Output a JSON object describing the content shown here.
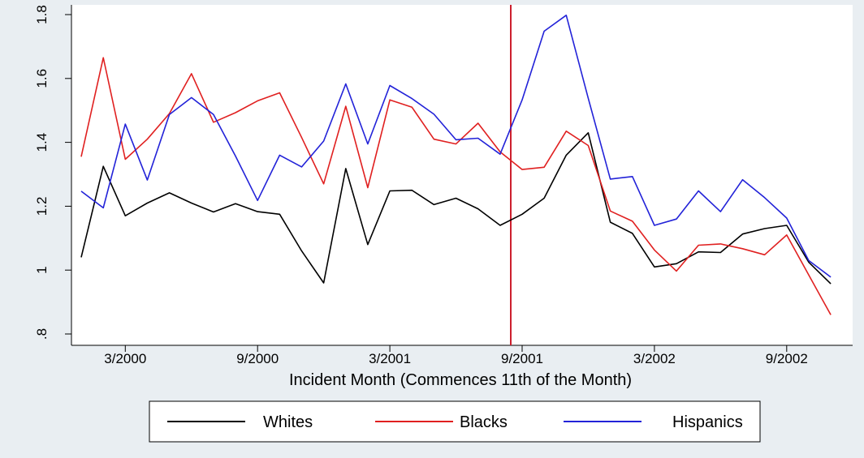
{
  "chart_data": {
    "type": "line",
    "xlabel": "Incident Month (Commences 11th of the Month)",
    "ylabel": "",
    "x_tick_labels": [
      "3/2000",
      "9/2000",
      "3/2001",
      "9/2001",
      "3/2002",
      "9/2002"
    ],
    "x_tick_index": [
      2,
      8,
      14,
      20,
      26,
      32
    ],
    "y_ticks": [
      0.8,
      1.0,
      1.2,
      1.4,
      1.6,
      1.8
    ],
    "y_tick_labels": [
      ".8",
      "1",
      "1.2",
      "1.4",
      "1.6",
      "1.8"
    ],
    "ylim": [
      0.8,
      1.8
    ],
    "x_start_label": "1/2000",
    "n_points": 35,
    "event_line_index": 20,
    "event_line_color": "#cc1f2e",
    "grid": false,
    "legend_position": "bottom",
    "series": [
      {
        "name": "Whites",
        "color": "#000000",
        "values": [
          1.04,
          1.325,
          1.17,
          1.21,
          1.242,
          1.21,
          1.182,
          1.208,
          1.183,
          1.175,
          1.06,
          0.96,
          1.318,
          1.08,
          1.248,
          1.25,
          1.205,
          1.225,
          1.192,
          1.14,
          1.175,
          1.225,
          1.36,
          1.43,
          1.15,
          1.115,
          1.01,
          1.02,
          1.057,
          1.055,
          1.113,
          1.13,
          1.14,
          1.025,
          0.957
        ]
      },
      {
        "name": "Blacks",
        "color": "#e02020",
        "values": [
          1.355,
          1.665,
          1.347,
          1.41,
          1.49,
          1.615,
          1.463,
          1.493,
          1.53,
          1.555,
          1.415,
          1.27,
          1.513,
          1.258,
          1.533,
          1.51,
          1.41,
          1.395,
          1.46,
          1.37,
          1.315,
          1.322,
          1.435,
          1.39,
          1.185,
          1.153,
          1.063,
          0.997,
          1.078,
          1.082,
          1.067,
          1.048,
          1.11,
          0.985,
          0.86
        ]
      },
      {
        "name": "Hispanics",
        "color": "#2222d8",
        "values": [
          1.247,
          1.195,
          1.457,
          1.282,
          1.487,
          1.54,
          1.487,
          1.357,
          1.218,
          1.36,
          1.323,
          1.404,
          1.583,
          1.395,
          1.578,
          1.537,
          1.488,
          1.408,
          1.413,
          1.363,
          1.533,
          1.748,
          1.798,
          1.538,
          1.285,
          1.293,
          1.14,
          1.16,
          1.248,
          1.183,
          1.283,
          1.227,
          1.163,
          1.03,
          0.978
        ]
      }
    ]
  }
}
